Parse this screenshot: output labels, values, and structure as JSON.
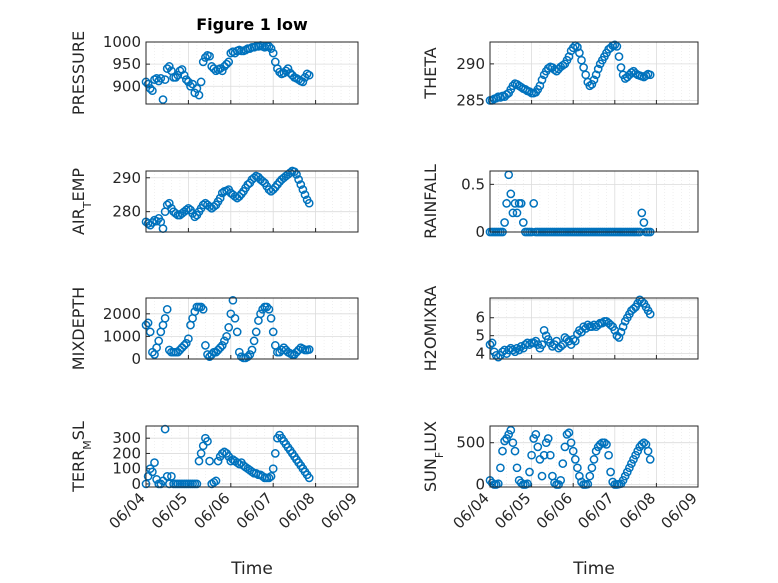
{
  "figure": {
    "title": "Figure 1 low",
    "xlabel": "Time",
    "xticks": [
      "06/04",
      "06/05",
      "06/06",
      "06/07",
      "06/08",
      "06/09"
    ]
  },
  "style": {
    "marker_color": "#0072BD",
    "grid_color": "#dcdcdc",
    "axis_color": "#262626"
  },
  "chart_data": [
    {
      "type": "scatter",
      "ylabel": "PRESSURE",
      "ylim": [
        860,
        1000
      ],
      "yticks": [
        900,
        950,
        1000
      ],
      "x": [
        4.0,
        4.05,
        4.1,
        4.15,
        4.2,
        4.25,
        4.3,
        4.35,
        4.4,
        4.45,
        4.5,
        4.55,
        4.6,
        4.65,
        4.7,
        4.75,
        4.8,
        4.85,
        4.9,
        4.95,
        5.0,
        5.05,
        5.1,
        5.15,
        5.2,
        5.25,
        5.3,
        5.35,
        5.4,
        5.45,
        5.5,
        5.55,
        5.6,
        5.65,
        5.7,
        5.75,
        5.8,
        5.85,
        5.9,
        5.95,
        6.0,
        6.05,
        6.1,
        6.15,
        6.2,
        6.25,
        6.3,
        6.35,
        6.4,
        6.45,
        6.5,
        6.55,
        6.6,
        6.65,
        6.7,
        6.75,
        6.8,
        6.85,
        6.9,
        6.95,
        7.0,
        7.05,
        7.1,
        7.15,
        7.2,
        7.25,
        7.3,
        7.35,
        7.4,
        7.45,
        7.5,
        7.55,
        7.6,
        7.65,
        7.7,
        7.75,
        7.8,
        7.85
      ],
      "y": [
        910,
        905,
        895,
        890,
        915,
        918,
        912,
        918,
        870,
        915,
        940,
        945,
        935,
        920,
        920,
        925,
        935,
        938,
        925,
        915,
        910,
        900,
        905,
        885,
        895,
        880,
        910,
        955,
        965,
        970,
        968,
        945,
        940,
        935,
        938,
        940,
        935,
        945,
        950,
        955,
        975,
        978,
        975,
        980,
        982,
        980,
        980,
        982,
        985,
        985,
        988,
        988,
        990,
        990,
        992,
        990,
        988,
        990,
        990,
        985,
        975,
        955,
        940,
        932,
        928,
        930,
        935,
        940,
        930,
        925,
        920,
        918,
        915,
        912,
        910,
        920,
        928,
        925
      ]
    },
    {
      "type": "scatter",
      "ylabel": "THETA",
      "ylim": [
        284.5,
        293
      ],
      "yticks": [
        285,
        290
      ],
      "x": [
        4.0,
        4.05,
        4.1,
        4.15,
        4.2,
        4.25,
        4.3,
        4.35,
        4.4,
        4.45,
        4.5,
        4.55,
        4.6,
        4.65,
        4.7,
        4.75,
        4.8,
        4.85,
        4.9,
        4.95,
        5.0,
        5.05,
        5.1,
        5.15,
        5.2,
        5.25,
        5.3,
        5.35,
        5.4,
        5.45,
        5.5,
        5.55,
        5.6,
        5.65,
        5.7,
        5.75,
        5.8,
        5.85,
        5.9,
        5.95,
        6.0,
        6.05,
        6.1,
        6.15,
        6.2,
        6.25,
        6.3,
        6.35,
        6.4,
        6.45,
        6.5,
        6.55,
        6.6,
        6.65,
        6.7,
        6.75,
        6.8,
        6.85,
        6.9,
        6.95,
        7.0,
        7.05,
        7.1,
        7.15,
        7.2,
        7.25,
        7.3,
        7.35,
        7.4,
        7.45,
        7.5,
        7.55,
        7.6,
        7.65,
        7.7,
        7.75,
        7.8,
        7.85
      ],
      "y": [
        285,
        285,
        285.2,
        285.3,
        285.5,
        285.4,
        285.6,
        285.5,
        285.8,
        286,
        286.5,
        287,
        287.3,
        287.2,
        287,
        286.8,
        286.6,
        286.5,
        286.3,
        286.2,
        286,
        286,
        286.1,
        286.5,
        287,
        287.8,
        288.5,
        289,
        289.4,
        289.6,
        289.5,
        289.2,
        289,
        289.3,
        289.6,
        289.8,
        290,
        290.5,
        291,
        291.8,
        292.2,
        292.5,
        292.3,
        291.5,
        290.5,
        289.5,
        288.5,
        287.5,
        287,
        287.2,
        287.8,
        288.5,
        289.3,
        290,
        290.5,
        291,
        291.5,
        292,
        292.2,
        292.5,
        292.6,
        292.4,
        291,
        289.5,
        288.5,
        288,
        288.2,
        288.5,
        288.8,
        289,
        288.7,
        288.5,
        288.4,
        288.3,
        288.2,
        288.4,
        288.6,
        288.5
      ]
    },
    {
      "type": "scatter",
      "ylabel": "AIR_TEMP",
      "ylim": [
        274,
        292
      ],
      "yticks": [
        280,
        290
      ],
      "x": [
        4.0,
        4.05,
        4.1,
        4.15,
        4.2,
        4.25,
        4.3,
        4.35,
        4.4,
        4.45,
        4.5,
        4.55,
        4.6,
        4.65,
        4.7,
        4.75,
        4.8,
        4.85,
        4.9,
        4.95,
        5.0,
        5.05,
        5.1,
        5.15,
        5.2,
        5.25,
        5.3,
        5.35,
        5.4,
        5.45,
        5.5,
        5.55,
        5.6,
        5.65,
        5.7,
        5.75,
        5.8,
        5.85,
        5.9,
        5.95,
        6.0,
        6.05,
        6.1,
        6.15,
        6.2,
        6.25,
        6.3,
        6.35,
        6.4,
        6.45,
        6.5,
        6.55,
        6.6,
        6.65,
        6.7,
        6.75,
        6.8,
        6.85,
        6.9,
        6.95,
        7.0,
        7.05,
        7.1,
        7.15,
        7.2,
        7.25,
        7.3,
        7.35,
        7.4,
        7.45,
        7.5,
        7.55,
        7.6,
        7.65,
        7.7,
        7.75,
        7.8,
        7.85
      ],
      "y": [
        277,
        276.5,
        276,
        276.8,
        277.5,
        277.2,
        278,
        277,
        275,
        280,
        282,
        282.5,
        281,
        280,
        279.5,
        279,
        279,
        279.5,
        280,
        280.5,
        281,
        280.5,
        279.5,
        278.5,
        279,
        280,
        281,
        282,
        282.5,
        282,
        281.5,
        281,
        281.5,
        282,
        283,
        284,
        285.5,
        286,
        286.2,
        286.5,
        285.5,
        285,
        284.5,
        284,
        284.5,
        285.2,
        286,
        287,
        288,
        288.5,
        289.5,
        290,
        290.5,
        290.2,
        289.5,
        289,
        288.5,
        287.5,
        286.5,
        286,
        286.5,
        287.2,
        288,
        288.8,
        289.5,
        290,
        290.5,
        291,
        291.5,
        292,
        291.8,
        291,
        289.5,
        288,
        286.5,
        285,
        283.5,
        282.5
      ]
    },
    {
      "type": "scatter",
      "ylabel": "RAINFALL",
      "ylim": [
        0,
        0.64
      ],
      "yticks": [
        0,
        0.5
      ],
      "x": [
        4.0,
        4.05,
        4.1,
        4.15,
        4.2,
        4.25,
        4.3,
        4.35,
        4.4,
        4.45,
        4.5,
        4.55,
        4.6,
        4.65,
        4.7,
        4.75,
        4.8,
        4.85,
        4.9,
        4.95,
        5.0,
        5.05,
        5.1,
        5.15,
        5.2,
        5.25,
        5.3,
        5.35,
        5.4,
        5.45,
        5.5,
        5.55,
        5.6,
        5.65,
        5.7,
        5.75,
        5.8,
        5.85,
        5.9,
        5.95,
        6.0,
        6.05,
        6.1,
        6.15,
        6.2,
        6.25,
        6.3,
        6.35,
        6.4,
        6.45,
        6.5,
        6.55,
        6.6,
        6.65,
        6.7,
        6.75,
        6.8,
        6.85,
        6.9,
        6.95,
        7.0,
        7.05,
        7.1,
        7.15,
        7.2,
        7.25,
        7.3,
        7.35,
        7.4,
        7.45,
        7.5,
        7.55,
        7.6,
        7.65,
        7.7,
        7.75,
        7.8,
        7.85
      ],
      "y": [
        0,
        0,
        0,
        0,
        0,
        0,
        0,
        0.1,
        0.3,
        0.6,
        0.4,
        0.2,
        0.3,
        0.2,
        0.3,
        0.3,
        0.1,
        0,
        0,
        0,
        0,
        0.3,
        0,
        0,
        0,
        0,
        0,
        0,
        0,
        0,
        0,
        0,
        0,
        0,
        0,
        0,
        0,
        0,
        0,
        0,
        0,
        0,
        0,
        0,
        0,
        0,
        0,
        0,
        0,
        0,
        0,
        0,
        0,
        0,
        0,
        0,
        0,
        0,
        0,
        0,
        0,
        0,
        0,
        0,
        0,
        0,
        0,
        0,
        0,
        0,
        0,
        0,
        0,
        0.2,
        0.1,
        0,
        0,
        0
      ]
    },
    {
      "type": "scatter",
      "ylabel": "MIXDEPTH",
      "ylim": [
        0,
        2700
      ],
      "yticks": [
        0,
        1000,
        2000
      ],
      "x": [
        4.0,
        4.05,
        4.1,
        4.15,
        4.2,
        4.25,
        4.3,
        4.35,
        4.4,
        4.45,
        4.5,
        4.55,
        4.6,
        4.65,
        4.7,
        4.75,
        4.8,
        4.85,
        4.9,
        4.95,
        5.0,
        5.05,
        5.1,
        5.15,
        5.2,
        5.25,
        5.3,
        5.35,
        5.4,
        5.45,
        5.5,
        5.55,
        5.6,
        5.65,
        5.7,
        5.75,
        5.8,
        5.85,
        5.9,
        5.95,
        6.0,
        6.05,
        6.1,
        6.15,
        6.2,
        6.25,
        6.3,
        6.35,
        6.4,
        6.45,
        6.5,
        6.55,
        6.6,
        6.65,
        6.7,
        6.75,
        6.8,
        6.85,
        6.9,
        6.95,
        7.0,
        7.05,
        7.1,
        7.15,
        7.2,
        7.25,
        7.3,
        7.35,
        7.4,
        7.45,
        7.5,
        7.55,
        7.6,
        7.65,
        7.7,
        7.75,
        7.8,
        7.85
      ],
      "y": [
        1500,
        1600,
        1200,
        300,
        200,
        500,
        800,
        1200,
        1500,
        1800,
        2200,
        400,
        300,
        300,
        300,
        300,
        400,
        500,
        600,
        700,
        900,
        1500,
        1800,
        2100,
        2300,
        2300,
        2300,
        2200,
        600,
        200,
        100,
        200,
        300,
        300,
        400,
        500,
        600,
        800,
        1000,
        1400,
        2000,
        2600,
        1800,
        1200,
        300,
        100,
        50,
        50,
        100,
        200,
        400,
        800,
        1200,
        1700,
        2000,
        2200,
        2300,
        2300,
        2200,
        1800,
        1200,
        600,
        300,
        300,
        400,
        500,
        400,
        300,
        250,
        200,
        200,
        300,
        400,
        500,
        450,
        400,
        400,
        420
      ]
    },
    {
      "type": "scatter",
      "ylabel": "H2OMIXRA",
      "ylim": [
        3.7,
        7.1
      ],
      "yticks": [
        4,
        5,
        6
      ],
      "x": [
        4.0,
        4.05,
        4.1,
        4.15,
        4.2,
        4.25,
        4.3,
        4.35,
        4.4,
        4.45,
        4.5,
        4.55,
        4.6,
        4.65,
        4.7,
        4.75,
        4.8,
        4.85,
        4.9,
        4.95,
        5.0,
        5.05,
        5.1,
        5.15,
        5.2,
        5.25,
        5.3,
        5.35,
        5.4,
        5.45,
        5.5,
        5.55,
        5.6,
        5.65,
        5.7,
        5.75,
        5.8,
        5.85,
        5.9,
        5.95,
        6.0,
        6.05,
        6.1,
        6.15,
        6.2,
        6.25,
        6.3,
        6.35,
        6.4,
        6.45,
        6.5,
        6.55,
        6.6,
        6.65,
        6.7,
        6.75,
        6.8,
        6.85,
        6.9,
        6.95,
        7.0,
        7.05,
        7.1,
        7.15,
        7.2,
        7.25,
        7.3,
        7.35,
        7.4,
        7.45,
        7.5,
        7.55,
        7.6,
        7.65,
        7.7,
        7.75,
        7.8,
        7.85
      ],
      "y": [
        4.5,
        4.6,
        4.1,
        3.9,
        3.8,
        3.9,
        4.1,
        4.2,
        4.0,
        4.2,
        4.3,
        4.2,
        4.1,
        4.3,
        4.2,
        4.4,
        4.3,
        4.5,
        4.6,
        4.5,
        4.6,
        4.6,
        4.7,
        4.5,
        4.3,
        4.5,
        5.3,
        5.0,
        4.8,
        4.6,
        4.4,
        4.5,
        4.7,
        4.3,
        4.4,
        4.5,
        4.9,
        4.8,
        4.7,
        4.5,
        4.8,
        4.7,
        5.1,
        5.3,
        5.2,
        5.5,
        5.4,
        5.6,
        5.5,
        5.5,
        5.6,
        5.5,
        5.6,
        5.7,
        5.7,
        5.8,
        5.8,
        5.7,
        5.6,
        5.5,
        5.3,
        5.0,
        4.9,
        5.2,
        5.5,
        5.8,
        6.0,
        6.2,
        6.4,
        6.5,
        6.6,
        6.8,
        7.0,
        6.9,
        6.8,
        6.6,
        6.4,
        6.2
      ]
    },
    {
      "type": "scatter",
      "ylabel": "TERR_MSL",
      "ylim": [
        -20,
        380
      ],
      "yticks": [
        0,
        100,
        200,
        300
      ],
      "x": [
        4.0,
        4.05,
        4.1,
        4.15,
        4.2,
        4.25,
        4.3,
        4.35,
        4.4,
        4.45,
        4.5,
        4.55,
        4.6,
        4.65,
        4.7,
        4.75,
        4.8,
        4.85,
        4.9,
        4.95,
        5.0,
        5.05,
        5.1,
        5.15,
        5.2,
        5.25,
        5.3,
        5.35,
        5.4,
        5.45,
        5.5,
        5.55,
        5.6,
        5.65,
        5.7,
        5.75,
        5.8,
        5.85,
        5.9,
        5.95,
        6.0,
        6.05,
        6.1,
        6.15,
        6.2,
        6.25,
        6.3,
        6.35,
        6.4,
        6.45,
        6.5,
        6.55,
        6.6,
        6.65,
        6.7,
        6.75,
        6.8,
        6.85,
        6.9,
        6.95,
        7.0,
        7.05,
        7.1,
        7.15,
        7.2,
        7.25,
        7.3,
        7.35,
        7.4,
        7.45,
        7.5,
        7.55,
        7.6,
        7.65,
        7.7,
        7.75,
        7.8,
        7.85
      ],
      "y": [
        0,
        50,
        100,
        80,
        140,
        30,
        0,
        0,
        20,
        360,
        50,
        0,
        50,
        0,
        0,
        0,
        0,
        0,
        0,
        0,
        0,
        0,
        0,
        0,
        0,
        150,
        200,
        250,
        300,
        280,
        150,
        0,
        10,
        20,
        150,
        180,
        200,
        210,
        200,
        180,
        150,
        160,
        150,
        140,
        130,
        140,
        120,
        110,
        100,
        90,
        80,
        70,
        70,
        60,
        60,
        50,
        40,
        40,
        40,
        50,
        100,
        200,
        300,
        320,
        300,
        280,
        260,
        240,
        220,
        200,
        180,
        160,
        140,
        120,
        100,
        80,
        60,
        40
      ]
    },
    {
      "type": "scatter",
      "ylabel": "SUN_FLUX",
      "ylim": [
        -30,
        700
      ],
      "yticks": [
        0,
        500
      ],
      "x": [
        4.0,
        4.05,
        4.1,
        4.15,
        4.2,
        4.25,
        4.3,
        4.35,
        4.4,
        4.45,
        4.5,
        4.55,
        4.6,
        4.65,
        4.7,
        4.75,
        4.8,
        4.85,
        4.9,
        4.95,
        5.0,
        5.05,
        5.1,
        5.15,
        5.2,
        5.25,
        5.3,
        5.35,
        5.4,
        5.45,
        5.5,
        5.55,
        5.6,
        5.65,
        5.7,
        5.75,
        5.8,
        5.85,
        5.9,
        5.95,
        6.0,
        6.05,
        6.1,
        6.15,
        6.2,
        6.25,
        6.3,
        6.35,
        6.4,
        6.45,
        6.5,
        6.55,
        6.6,
        6.65,
        6.7,
        6.75,
        6.8,
        6.85,
        6.9,
        6.95,
        7.0,
        7.05,
        7.1,
        7.15,
        7.2,
        7.25,
        7.3,
        7.35,
        7.4,
        7.45,
        7.5,
        7.55,
        7.6,
        7.65,
        7.7,
        7.75,
        7.8,
        7.85
      ],
      "y": [
        50,
        20,
        0,
        0,
        10,
        200,
        400,
        520,
        550,
        600,
        650,
        500,
        400,
        200,
        50,
        20,
        0,
        0,
        10,
        150,
        350,
        550,
        600,
        450,
        300,
        100,
        350,
        500,
        550,
        350,
        100,
        20,
        0,
        0,
        50,
        250,
        450,
        600,
        620,
        500,
        400,
        300,
        200,
        100,
        30,
        0,
        0,
        5,
        100,
        200,
        300,
        400,
        450,
        480,
        500,
        500,
        480,
        350,
        150,
        30,
        0,
        0,
        5,
        10,
        50,
        100,
        150,
        200,
        250,
        300,
        350,
        400,
        450,
        480,
        500,
        480,
        400,
        300
      ]
    }
  ]
}
